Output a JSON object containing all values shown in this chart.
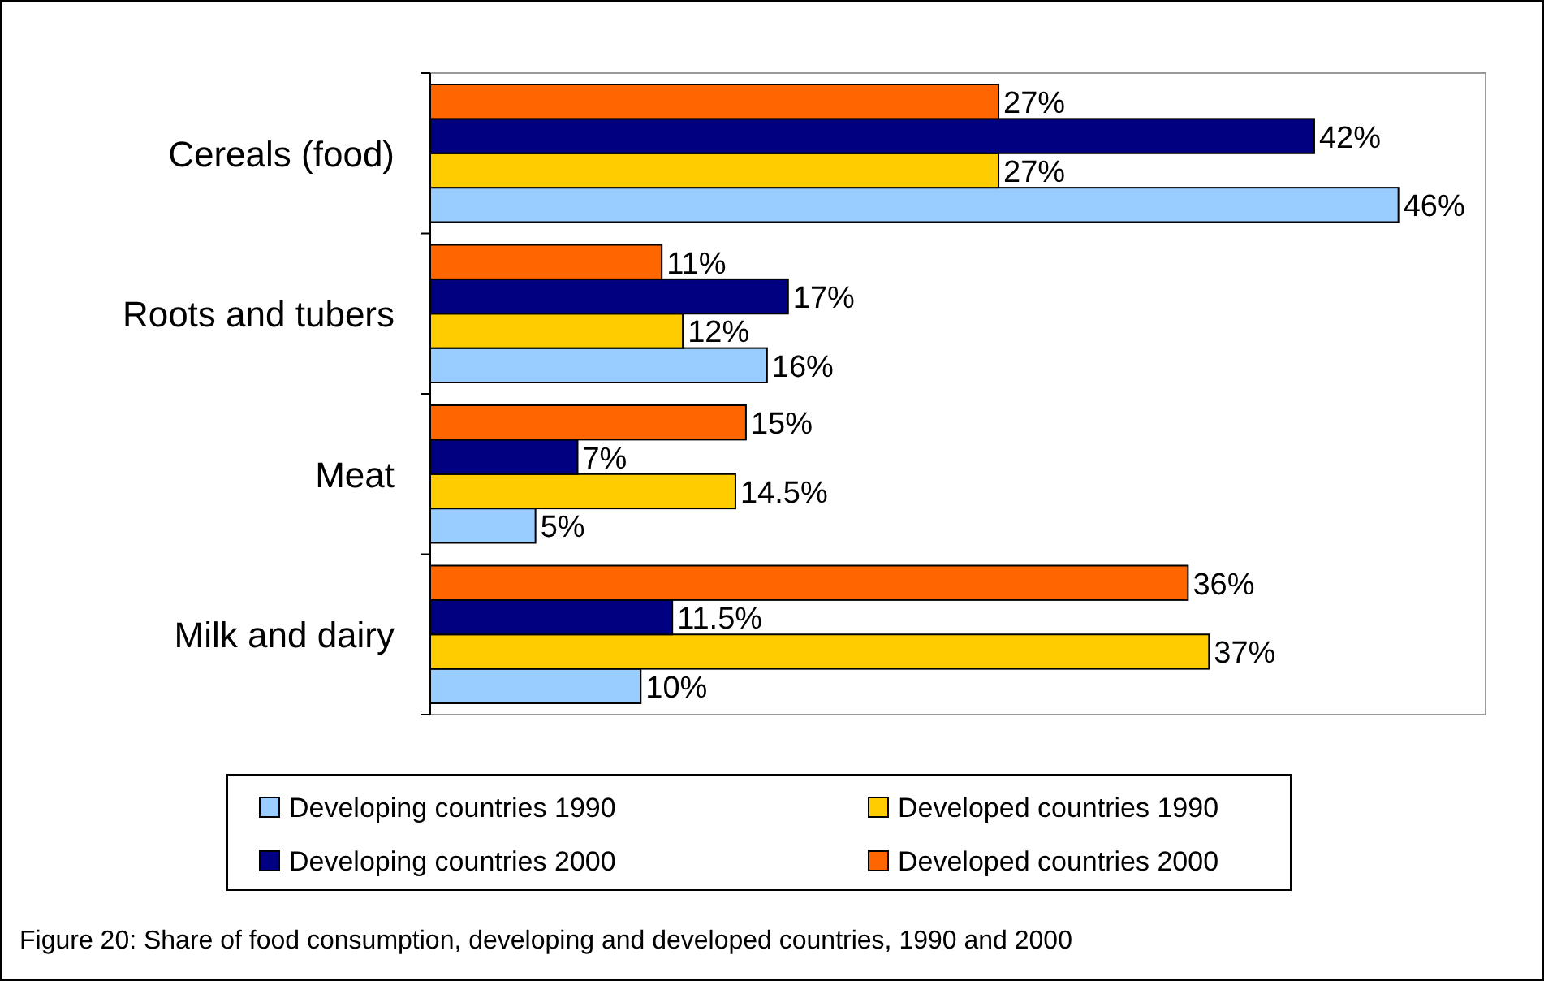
{
  "chart_data": {
    "type": "bar",
    "orientation": "horizontal",
    "title": "Figure 20: Share of food consumption, developing and developed countries, 1990 and 2000",
    "categories": [
      "Cereals (food)",
      "Roots and tubers",
      "Meat",
      "Milk and dairy"
    ],
    "legend": "bottom",
    "series": [
      {
        "name": "Developing countries 1990",
        "color": "#99ccff",
        "values": [
          46,
          16,
          5,
          10
        ],
        "value_labels": [
          "46%",
          "16%",
          "5%",
          "10%"
        ]
      },
      {
        "name": "Developed countries 1990",
        "color": "#ffcc00",
        "values": [
          27,
          12,
          14.5,
          37
        ],
        "value_labels": [
          "27%",
          "12%",
          "14.5%",
          "37%"
        ]
      },
      {
        "name": "Developing countries 2000",
        "color": "#000080",
        "values": [
          42,
          17,
          7,
          11.5
        ],
        "value_labels": [
          "42%",
          "17%",
          "7%",
          "11.5%"
        ]
      },
      {
        "name": "Developed countries 2000",
        "color": "#ff6600",
        "values": [
          27,
          11,
          15,
          36
        ],
        "value_labels": [
          "27%",
          "11%",
          "15%",
          "36%"
        ]
      }
    ]
  }
}
